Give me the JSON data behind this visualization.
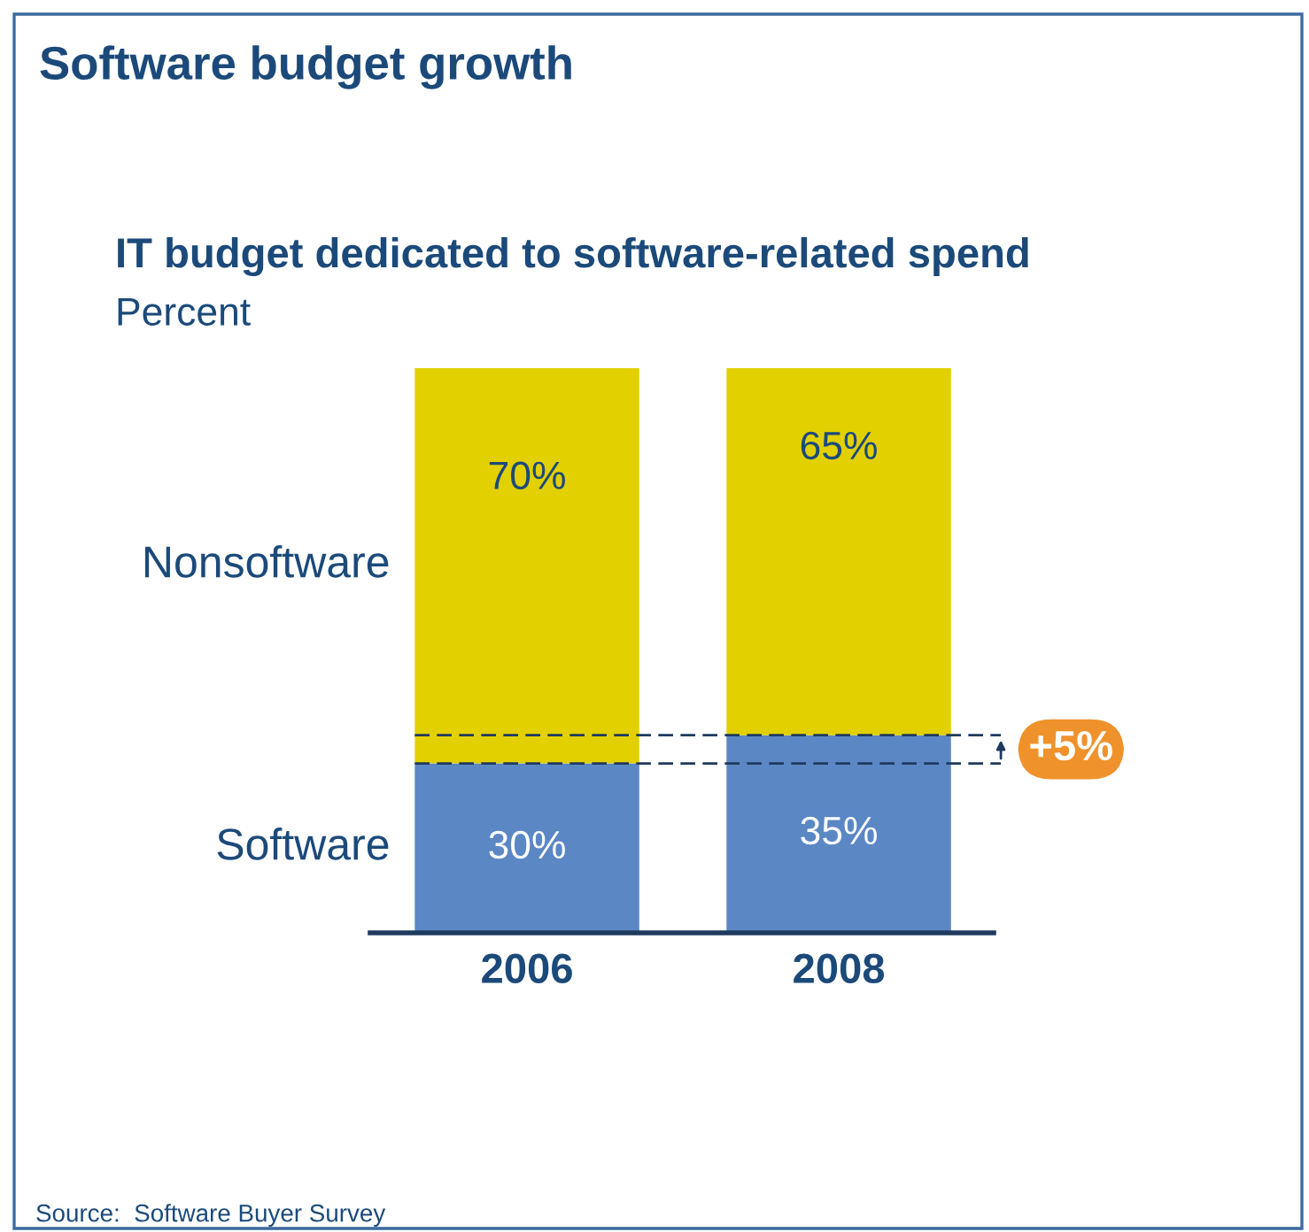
{
  "chart_data": {
    "type": "bar",
    "stacked": true,
    "title": "Software budget growth",
    "subtitle": "IT budget dedicated to software-related spend",
    "ylabel": "Percent",
    "categories": [
      "2006",
      "2008"
    ],
    "series": [
      {
        "name": "Software",
        "color": "#5b87c5",
        "values": [
          30,
          35
        ],
        "value_labels": [
          "30%",
          "35%"
        ]
      },
      {
        "name": "Nonsoftware",
        "color": "#e3d000",
        "values": [
          70,
          65
        ],
        "value_labels": [
          "70%",
          "65%"
        ]
      }
    ],
    "ref_lines": [
      {
        "axis": "y",
        "value": 30,
        "color": "#1f3a5f",
        "line_style": "dashed"
      },
      {
        "axis": "y",
        "value": 35,
        "color": "#1f3a5f",
        "line_style": "dashed"
      }
    ],
    "annotations": [
      "+5%",
      "Source:  Software Buyer Survey"
    ],
    "legend": false
  }
}
